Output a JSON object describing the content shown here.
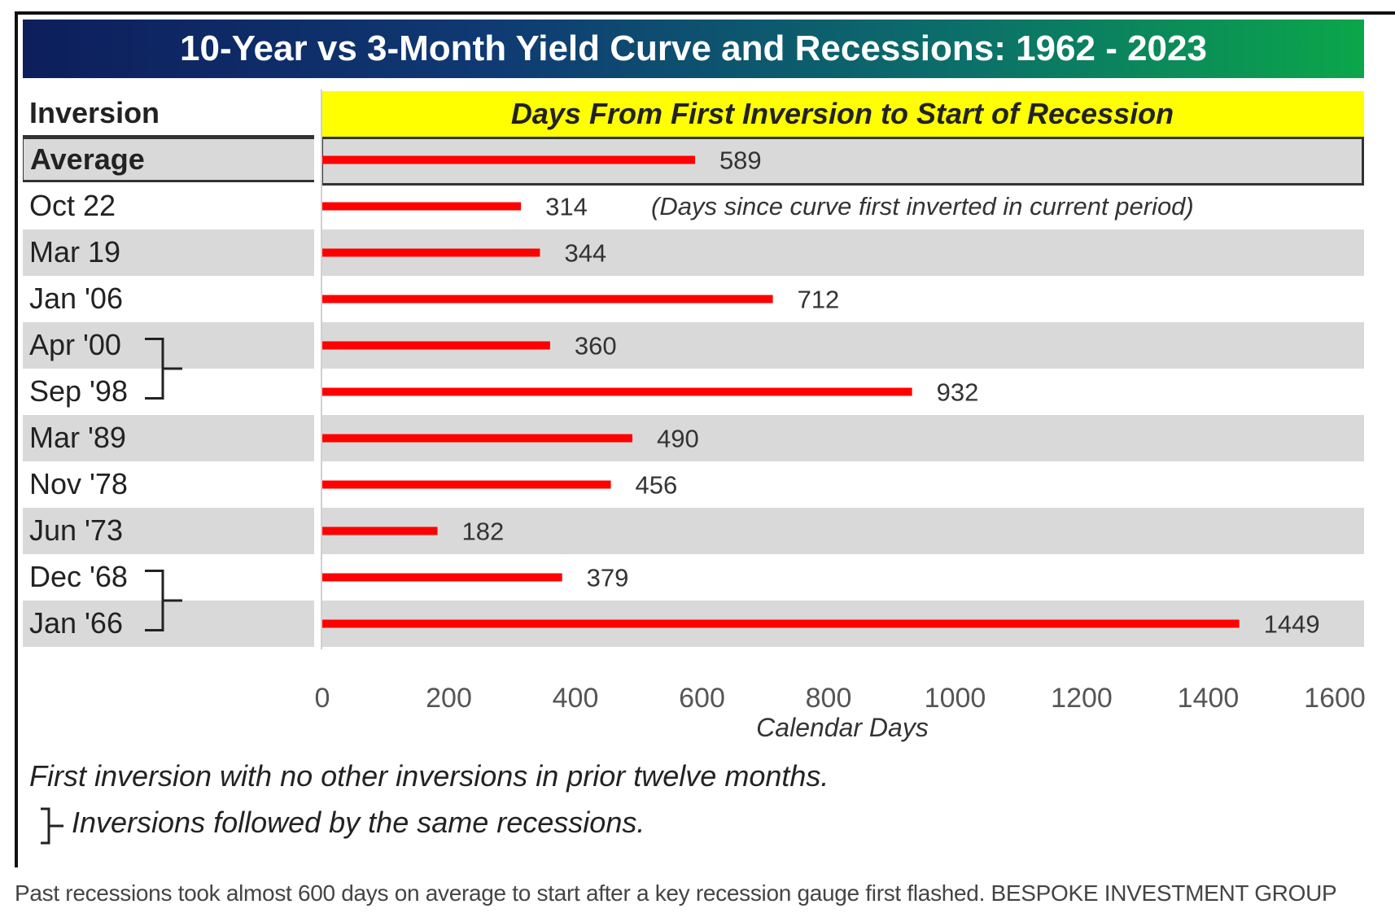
{
  "title": "10-Year vs 3-Month Yield Curve and Recessions: 1962 - 2023",
  "header_label": "Inversion",
  "chart_header": "Days From First Inversion to Start of Recession",
  "annotation": "(Days since curve first inverted in current period)",
  "notes": {
    "first": "First inversion with no other inversions in prior twelve months.",
    "second": "Inversions followed by the same recessions."
  },
  "caption": {
    "text": "Past recessions took almost 600 days on average to start after a key recession gauge first flashed.",
    "credit": "BESPOKE INVESTMENT GROUP"
  },
  "colors": {
    "bar": "#ff0000",
    "header_bg": "#ffff00",
    "row_shade": "#d9d9d9"
  },
  "chart_data": {
    "type": "bar",
    "orientation": "horizontal",
    "categories": [
      "Average",
      "Oct 22",
      "Mar 19",
      "Jan '06",
      "Apr '00",
      "Sep '98",
      "Mar '89",
      "Nov '78",
      "Jun '73",
      "Dec '68",
      "Jan '66"
    ],
    "values": [
      589,
      314,
      344,
      712,
      360,
      932,
      490,
      456,
      182,
      379,
      1449
    ],
    "xlabel": "Calendar Days",
    "xlim": [
      0,
      1600
    ],
    "xticks": [
      0,
      200,
      400,
      600,
      800,
      1000,
      1200,
      1400,
      1600
    ],
    "bracket_groups": [
      [
        "Apr '00",
        "Sep '98"
      ],
      [
        "Dec '68",
        "Jan '66"
      ]
    ],
    "legend": "none",
    "grid": false
  }
}
